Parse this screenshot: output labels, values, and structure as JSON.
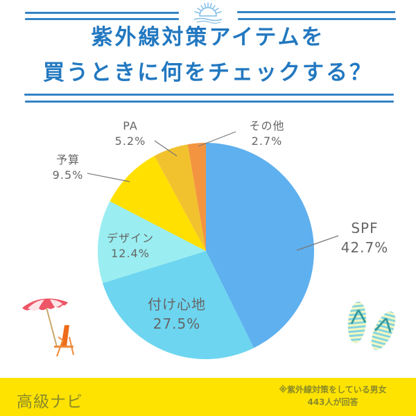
{
  "title": {
    "line1": "紫外線対策アイテムを",
    "line2": "買うときに何をチェックする？"
  },
  "footer": {
    "brand": "高級ナビ",
    "note_line1": "※紫外線対策をしている男女",
    "note_line2": "443人が回答",
    "background": "#FFE300"
  },
  "decorations": {
    "top_icon": "sun-over-waves-icon",
    "left_icon": "beach-umbrella-chair-icon",
    "right_icon": "flip-flops-icon"
  },
  "chart_data": {
    "type": "pie",
    "title": "紫外線対策アイテムを買うときに何をチェックする？",
    "start_angle": "12 o'clock, clockwise",
    "categories": [
      "SPF",
      "付け心地",
      "デザイン",
      "予算",
      "PA",
      "その他"
    ],
    "values": [
      42.7,
      27.5,
      12.4,
      9.5,
      5.2,
      2.7
    ],
    "unit": "%",
    "colors": [
      "#5FB0EE",
      "#6DD5F0",
      "#9AEDF0",
      "#FFE000",
      "#F2C12E",
      "#F39440"
    ],
    "labels": [
      {
        "name": "SPF",
        "value": "42.7%"
      },
      {
        "name": "付け心地",
        "value": "27.5%"
      },
      {
        "name": "デザイン",
        "value": "12.4%"
      },
      {
        "name": "予算",
        "value": "9.5%"
      },
      {
        "name": "PA",
        "value": "5.2%"
      },
      {
        "name": "その他",
        "value": "2.7%"
      }
    ],
    "respondents": 443
  }
}
